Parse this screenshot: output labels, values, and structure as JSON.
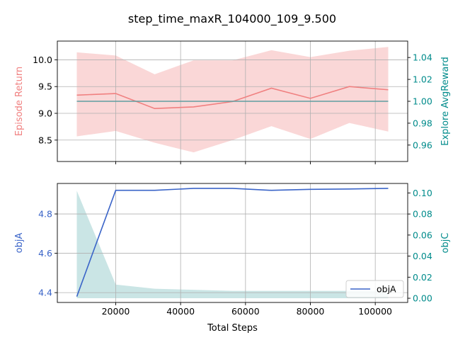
{
  "figure": {
    "suptitle": "step_time_maxR_104000_109_9.500"
  },
  "colors": {
    "return_line": "#f08080",
    "return_band": "#f4a6a6",
    "explore_line": "#5f9ea0",
    "objA_line": "#3a64c8",
    "objC_fill": "#9fd0d0",
    "right_axis": "#008b8b",
    "grid": "#b0b0b0"
  },
  "chart_data": [
    {
      "type": "line",
      "panel": "top",
      "xlabel": "",
      "ylabel_left": "Episode Return",
      "ylabel_right": "Explore AvgReward",
      "xlim": [
        2000,
        110000
      ],
      "ylim_left": [
        8.1,
        10.35
      ],
      "ylim_right": [
        0.945,
        1.055
      ],
      "xticks": [
        20000,
        40000,
        60000,
        80000,
        100000
      ],
      "xtick_labels": [
        "",
        "",
        "",
        "",
        ""
      ],
      "yticks_left": [
        8.5,
        9.0,
        9.5,
        10.0
      ],
      "ytick_labels_left": [
        "8.5",
        "9.0",
        "9.5",
        "10.0"
      ],
      "yticks_right": [
        0.96,
        0.98,
        1.0,
        1.02,
        1.04
      ],
      "ytick_labels_right": [
        "0.96",
        "0.98",
        "1.00",
        "1.02",
        "1.04"
      ],
      "grid": true,
      "x": [
        8000,
        20000,
        32000,
        44000,
        56000,
        68000,
        80000,
        92000,
        104000
      ],
      "series": [
        {
          "axis": "left",
          "kind": "line",
          "values": [
            9.34,
            9.37,
            9.09,
            9.12,
            9.22,
            9.47,
            9.28,
            9.5,
            9.44
          ]
        },
        {
          "axis": "left",
          "kind": "band",
          "lower": [
            8.57,
            8.67,
            8.45,
            8.27,
            8.5,
            8.76,
            8.52,
            8.82,
            8.66
          ],
          "upper": [
            10.14,
            10.08,
            9.73,
            9.99,
            9.99,
            10.18,
            10.05,
            10.17,
            10.24
          ]
        },
        {
          "axis": "right",
          "kind": "line",
          "values": [
            1.0,
            1.0,
            1.0,
            1.0,
            1.0,
            1.0,
            1.0,
            1.0,
            1.0
          ]
        }
      ]
    },
    {
      "type": "line",
      "panel": "bottom",
      "xlabel": "Total Steps",
      "ylabel_left": "objA",
      "ylabel_right": "objC",
      "xlim": [
        2000,
        110000
      ],
      "ylim_left": [
        4.35,
        4.955
      ],
      "ylim_right": [
        -0.004,
        0.109
      ],
      "xticks": [
        20000,
        40000,
        60000,
        80000,
        100000
      ],
      "xtick_labels": [
        "20000",
        "40000",
        "60000",
        "80000",
        "100000"
      ],
      "yticks_left": [
        4.4,
        4.6,
        4.8
      ],
      "ytick_labels_left": [
        "4.4",
        "4.6",
        "4.8"
      ],
      "yticks_right": [
        0.0,
        0.02,
        0.04,
        0.06,
        0.08,
        0.1
      ],
      "ytick_labels_right": [
        "0.00",
        "0.02",
        "0.04",
        "0.06",
        "0.08",
        "0.10"
      ],
      "grid": true,
      "legend": {
        "placement": "lower-right",
        "entries": [
          "objA"
        ]
      },
      "x": [
        8000,
        20000,
        32000,
        44000,
        56000,
        68000,
        80000,
        92000,
        104000
      ],
      "series": [
        {
          "name": "objA",
          "axis": "left",
          "kind": "line",
          "values": [
            4.38,
            4.92,
            4.92,
            4.93,
            4.93,
            4.92,
            4.925,
            4.927,
            4.93
          ]
        },
        {
          "axis": "right",
          "kind": "area",
          "values": [
            0.102,
            0.013,
            0.009,
            0.008,
            0.007,
            0.007,
            0.007,
            0.007,
            0.007
          ]
        }
      ]
    }
  ]
}
